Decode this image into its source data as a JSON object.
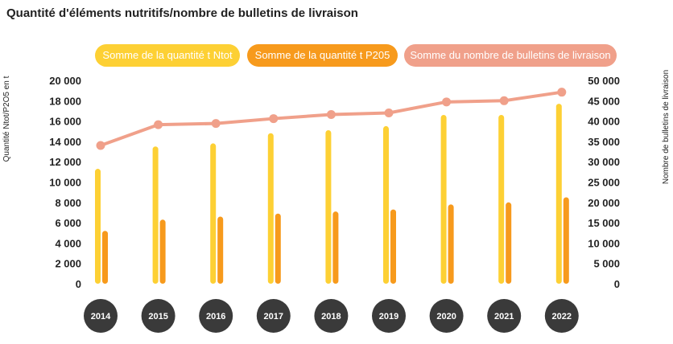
{
  "chart_data": {
    "type": "bar",
    "title": "Quantité d'éléments nutritifs/nombre de bulletins de livraison",
    "ylabel": "Quantité Ntot/P2O5 en t",
    "y2label": "Nombre de bulletins de livraison",
    "ylim": [
      0,
      20000
    ],
    "y2lim": [
      0,
      50000
    ],
    "yticks": [
      "0",
      "2 000",
      "4 000",
      "6 000",
      "8 000",
      "10 000",
      "12 000",
      "14 000",
      "16 000",
      "18 000",
      "20 000"
    ],
    "y2ticks": [
      "0",
      "5 000",
      "10 000",
      "15 000",
      "20 000",
      "25 000",
      "30 000",
      "35 000",
      "40 000",
      "45 000",
      "50 000"
    ],
    "categories": [
      "2014",
      "2015",
      "2016",
      "2017",
      "2018",
      "2019",
      "2020",
      "2021",
      "2022"
    ],
    "series": [
      {
        "name": "Somme de la quantité t Ntot",
        "type": "bar",
        "axis": "left",
        "color": "#fdd034",
        "values": [
          11300,
          13500,
          13800,
          14800,
          15100,
          15500,
          16600,
          16600,
          17700
        ]
      },
      {
        "name": "Somme de la quantité t P205",
        "type": "bar",
        "axis": "left",
        "color": "#f79a1c",
        "values": [
          5200,
          6300,
          6600,
          6900,
          7100,
          7300,
          7800,
          8000,
          8500
        ]
      },
      {
        "name": "Somme du nombre de bulletins de livraison",
        "type": "line",
        "axis": "right",
        "color": "#f0a08a",
        "values": [
          34000,
          39100,
          39400,
          40600,
          41600,
          42000,
          44700,
          45000,
          47100
        ]
      }
    ],
    "legend_position": "top"
  }
}
